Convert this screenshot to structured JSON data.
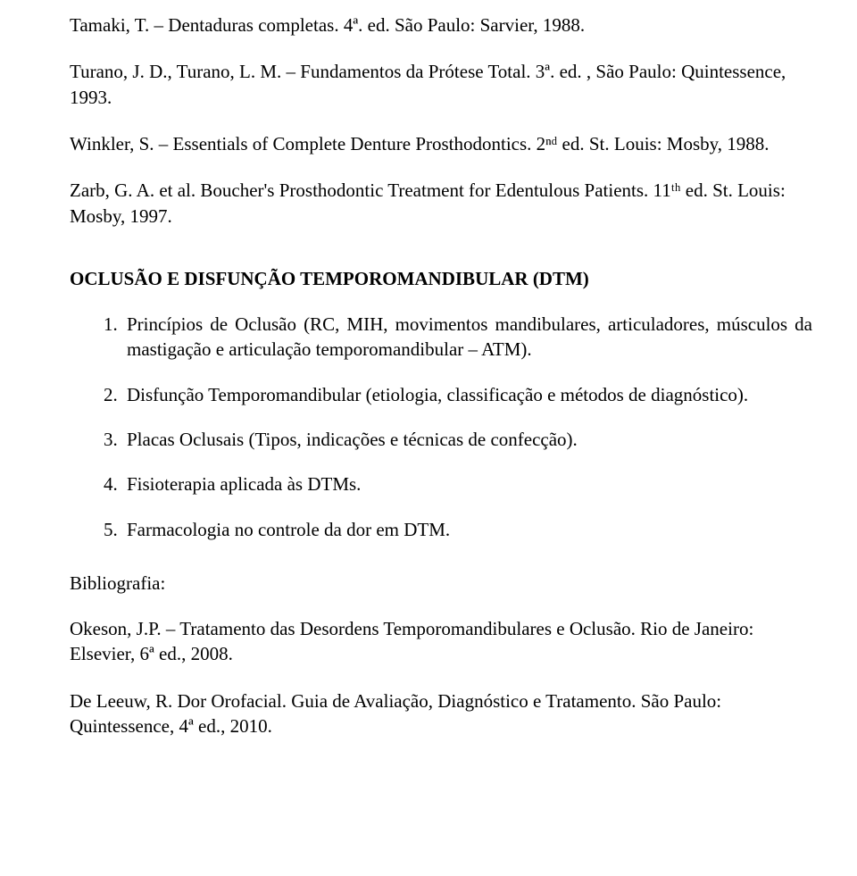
{
  "refs_top": [
    "Tamaki, T. – Dentaduras completas. 4ª. ed. São Paulo: Sarvier, 1988.",
    "Turano, J. D., Turano, L. M. – Fundamentos da Prótese Total. 3ª. ed. , São Paulo: Quintessence, 1993.",
    "Winkler, S. – Essentials of Complete Denture Prosthodontics. 2ⁿᵈ ed. St. Louis: Mosby, 1988.",
    "Zarb, G. A. et al. Boucher's Prosthodontic Treatment for Edentulous Patients. 11ᵗʰ ed. St. Louis: Mosby, 1997."
  ],
  "heading": "OCLUSÃO E DISFUNÇÃO TEMPOROMANDIBULAR (DTM)",
  "items": [
    {
      "n": "1.",
      "text": "Princípios de Oclusão (RC, MIH, movimentos mandibulares, articuladores, músculos da mastigação e articulação temporomandibular – ATM).",
      "justify": true
    },
    {
      "n": "2.",
      "text": "Disfunção Temporomandibular (etiologia, classificação e métodos de diagnóstico).",
      "justify": false
    },
    {
      "n": "3.",
      "text": "Placas Oclusais (Tipos, indicações e técnicas de confecção).",
      "justify": false
    },
    {
      "n": "4.",
      "text": "Fisioterapia aplicada às DTMs.",
      "justify": false
    },
    {
      "n": "5.",
      "text": "Farmacologia no controle da dor em DTM.",
      "justify": false
    }
  ],
  "bib_label": "Bibliografia:",
  "refs_bottom": [
    "Okeson, J.P. – Tratamento das Desordens Temporomandibulares e Oclusão. Rio de Janeiro: Elsevier, 6ª ed., 2008.",
    "De Leeuw, R. Dor Orofacial. Guia de Avaliação, Diagnóstico e Tratamento. São Paulo: Quintessence, 4ª ed., 2010."
  ]
}
